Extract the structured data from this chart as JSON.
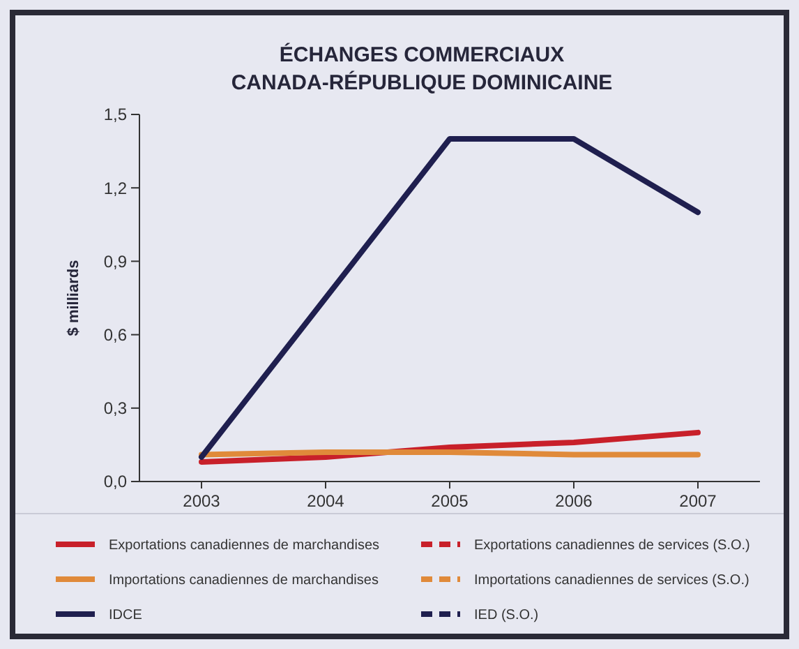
{
  "chart_data": {
    "type": "line",
    "title": "ÉCHANGES COMMERCIAUX\nCANADA-RÉPUBLIQUE DOMINICAINE",
    "ylabel": "$ milliards",
    "x": [
      2003,
      2004,
      2005,
      2006,
      2007
    ],
    "xlim": [
      2002.5,
      2007.5
    ],
    "xticks": [
      2003,
      2004,
      2005,
      2006,
      2007
    ],
    "ylim": [
      0,
      1.5
    ],
    "yticks": [
      {
        "value": 0,
        "label": "0,0"
      },
      {
        "value": 0.3,
        "label": "0,3"
      },
      {
        "value": 0.6,
        "label": "0,6"
      },
      {
        "value": 0.9,
        "label": "0,9"
      },
      {
        "value": 1.2,
        "label": "1,2"
      },
      {
        "value": 1.5,
        "label": "1,5"
      }
    ],
    "grid": false,
    "legend": "bottom",
    "marker": "none",
    "series": [
      {
        "name": "Exportations canadiennes de marchandises",
        "color": "#c8202a",
        "line_style": "solid",
        "values": [
          0.08,
          0.1,
          0.14,
          0.16,
          0.2
        ]
      },
      {
        "name": "Exportations canadiennes de services (S.O.)",
        "color": "#c8202a",
        "line_style": "dashed",
        "values": [
          null,
          null,
          null,
          null,
          null
        ]
      },
      {
        "name": "Importations canadiennes de marchandises",
        "color": "#e08a3a",
        "line_style": "solid",
        "values": [
          0.11,
          0.12,
          0.12,
          0.11,
          0.11
        ]
      },
      {
        "name": "Importations canadiennes de services (S.O.)",
        "color": "#e08a3a",
        "line_style": "dashed",
        "values": [
          null,
          null,
          null,
          null,
          null
        ]
      },
      {
        "name": "IDCE",
        "color": "#1f1f4f",
        "line_style": "solid",
        "values": [
          0.1,
          0.75,
          1.4,
          1.4,
          1.1
        ]
      },
      {
        "name": "IED (S.O.)",
        "color": "#1f1f4f",
        "line_style": "dashed",
        "values": [
          null,
          null,
          null,
          null,
          null
        ]
      }
    ]
  }
}
